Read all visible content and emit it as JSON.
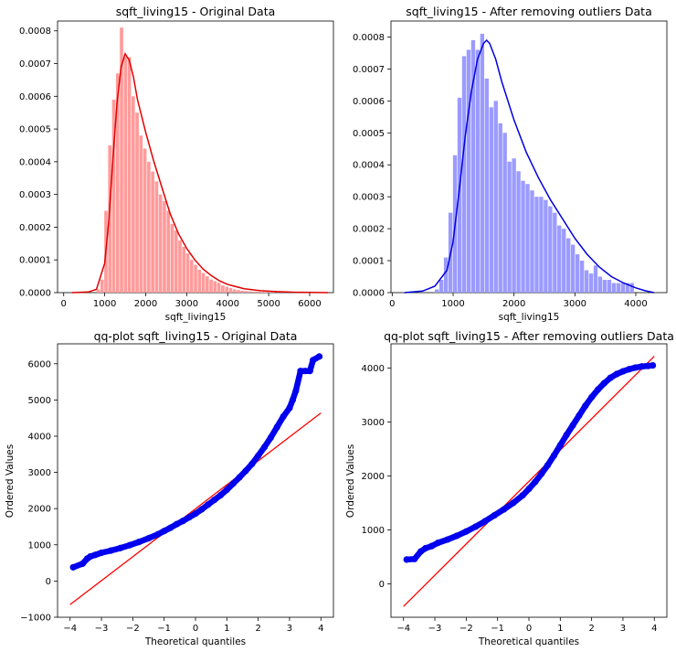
{
  "chart_data": [
    {
      "type": "histogram",
      "title": "sqft_living15 - Original Data",
      "xlabel": "sqft_living15",
      "ylabel": "",
      "xlim": [
        -150,
        6580
      ],
      "ylim": [
        0,
        0.00083
      ],
      "xticks": [
        0,
        1000,
        2000,
        3000,
        4000,
        5000,
        6000
      ],
      "xtick_labels": [
        "0",
        "1000",
        "2000",
        "3000",
        "4000",
        "5000",
        "6000"
      ],
      "yticks": [
        0,
        0.0001,
        0.0002,
        0.0003,
        0.0004,
        0.0005,
        0.0006,
        0.0007,
        0.0008
      ],
      "ytick_labels": [
        "0.0000",
        "0.0001",
        "0.0002",
        "0.0003",
        "0.0004",
        "0.0005",
        "0.0006",
        "0.0007",
        "0.0008"
      ],
      "bar_color": "#ff9b9b",
      "line_color": "#e00000",
      "bins": {
        "start": 800,
        "width": 95,
        "values": [
          1e-05,
          4e-05,
          0.00025,
          0.00045,
          0.00059,
          0.00067,
          0.00081,
          0.00072,
          0.00072,
          0.0006,
          0.00055,
          0.00048,
          0.00044,
          0.0004,
          0.00037,
          0.00034,
          0.0003,
          0.00028,
          0.00025,
          0.00021,
          0.00019,
          0.00016,
          0.00014,
          0.00012,
          0.0001,
          8.5e-05,
          7e-05,
          6e-05,
          5e-05,
          4e-05,
          3.5e-05,
          3e-05,
          2.2e-05,
          1.8e-05,
          1.4e-05,
          1e-05,
          8e-06,
          6e-06,
          5e-06,
          4e-06,
          3e-06,
          3e-06,
          2e-06,
          2e-06,
          1.5e-06,
          1.5e-06,
          1e-06,
          1e-06,
          1e-06,
          1e-06,
          1e-06,
          1e-06,
          1e-06,
          1e-06,
          1e-06,
          1e-06,
          1e-06
        ]
      },
      "kde": {
        "x": [
          200,
          600,
          800,
          1000,
          1100,
          1200,
          1300,
          1400,
          1500,
          1600,
          1700,
          1800,
          2000,
          2200,
          2400,
          2600,
          2800,
          3000,
          3200,
          3400,
          3600,
          3800,
          4000,
          4400,
          4800,
          5200,
          5600,
          6000,
          6450
        ],
        "y": [
          0,
          2e-06,
          1e-05,
          9e-05,
          0.00022,
          0.00041,
          0.00058,
          0.00069,
          0.00073,
          0.00071,
          0.00066,
          0.00059,
          0.00049,
          0.0004,
          0.00032,
          0.00024,
          0.00018,
          0.000135,
          0.0001,
          7.2e-05,
          5.2e-05,
          3.6e-05,
          2.5e-05,
          1.2e-05,
          6e-06,
          3e-06,
          1.5e-06,
          8e-07,
          0
        ]
      }
    },
    {
      "type": "histogram",
      "title": "sqft_living15 - After removing outliers Data",
      "xlabel": "sqft_living15",
      "ylabel": "",
      "xlim": [
        -20,
        4510
      ],
      "ylim": [
        0,
        0.00085
      ],
      "xticks": [
        0,
        1000,
        2000,
        3000,
        4000
      ],
      "xtick_labels": [
        "0",
        "1000",
        "2000",
        "3000",
        "4000"
      ],
      "yticks": [
        0,
        0.0001,
        0.0002,
        0.0003,
        0.0004,
        0.0005,
        0.0006,
        0.0007,
        0.0008
      ],
      "ytick_labels": [
        "0.0000",
        "0.0001",
        "0.0002",
        "0.0003",
        "0.0004",
        "0.0005",
        "0.0006",
        "0.0007",
        "0.0008"
      ],
      "bar_color": "#9b9bff",
      "line_color": "#0000e0",
      "bins": {
        "start": 700,
        "width": 74.5,
        "values": [
          1e-05,
          4e-05,
          0.00011,
          0.00025,
          0.00043,
          0.00061,
          0.00074,
          0.00076,
          0.00079,
          0.00076,
          0.00081,
          0.00067,
          0.00058,
          0.0006,
          0.00053,
          0.0005,
          0.00041,
          0.00042,
          0.00038,
          0.00035,
          0.00034,
          0.00032,
          0.0003,
          0.0003,
          0.00029,
          0.00027,
          0.00025,
          0.00021,
          0.0002,
          0.00017,
          0.00015,
          0.00012,
          0.0001,
          7e-05,
          6e-05,
          8.5e-05,
          5e-05,
          4e-05,
          4e-05,
          3e-05,
          3e-05,
          3e-05,
          3e-05,
          3e-05
        ]
      },
      "kde": {
        "x": [
          200,
          500,
          700,
          900,
          1000,
          1100,
          1200,
          1300,
          1400,
          1500,
          1550,
          1600,
          1700,
          1800,
          2000,
          2200,
          2400,
          2600,
          2800,
          3000,
          3200,
          3400,
          3600,
          3800,
          4000,
          4150,
          4300
        ],
        "y": [
          0,
          5e-06,
          2e-05,
          7e-05,
          0.00016,
          0.00032,
          0.00049,
          0.00063,
          0.00073,
          0.00078,
          0.00079,
          0.00078,
          0.00073,
          0.00066,
          0.00054,
          0.00044,
          0.00036,
          0.00029,
          0.00023,
          0.00017,
          0.00012,
          8e-05,
          5e-05,
          3e-05,
          1.5e-05,
          6e-06,
          0
        ]
      }
    },
    {
      "type": "scatter",
      "title": "qq-plot sqft_living15 - Original Data",
      "xlabel": "Theoretical quantiles",
      "ylabel": "Ordered Values",
      "xlim": [
        -4.4,
        4.4
      ],
      "ylim": [
        -1000,
        6550
      ],
      "xticks": [
        -4,
        -3,
        -2,
        -1,
        0,
        1,
        2,
        3,
        4
      ],
      "xtick_labels": [
        "−4",
        "−3",
        "−2",
        "−1",
        "0",
        "1",
        "2",
        "3",
        "4"
      ],
      "yticks": [
        -1000,
        0,
        1000,
        2000,
        3000,
        4000,
        5000,
        6000
      ],
      "ytick_labels": [
        "−1000",
        "0",
        "1000",
        "2000",
        "3000",
        "4000",
        "5000",
        "6000"
      ],
      "point_color": "#0000ee",
      "line_color": "#ff0000",
      "points": {
        "x": [
          -3.9,
          -3.6,
          -3.45,
          -3.35,
          -3.2,
          -3.0,
          -2.7,
          -2.4,
          -2.1,
          -1.8,
          -1.5,
          -1.2,
          -1.0,
          -0.8,
          -0.6,
          -0.4,
          -0.2,
          0,
          0.2,
          0.4,
          0.6,
          0.8,
          1.0,
          1.2,
          1.4,
          1.6,
          1.8,
          2.0,
          2.2,
          2.4,
          2.6,
          2.8,
          3.0,
          3.1,
          3.2,
          3.35,
          3.5,
          3.65,
          3.75,
          3.95
        ],
        "y": [
          380,
          480,
          620,
          680,
          720,
          780,
          840,
          910,
          990,
          1080,
          1180,
          1290,
          1380,
          1470,
          1570,
          1660,
          1760,
          1860,
          1980,
          2110,
          2240,
          2370,
          2520,
          2690,
          2860,
          3040,
          3230,
          3460,
          3700,
          3960,
          4250,
          4540,
          4780,
          5000,
          5250,
          5800,
          5800,
          5800,
          6100,
          6200
        ]
      },
      "ref_line": {
        "x": [
          -4,
          4
        ],
        "y": [
          -650,
          4640
        ]
      }
    },
    {
      "type": "scatter",
      "title": "qq-plot sqft_living15 - After removing outliers Data",
      "xlabel": "Theoretical quantiles",
      "ylabel": "Ordered Values",
      "xlim": [
        -4.4,
        4.4
      ],
      "ylim": [
        -620,
        4450
      ],
      "xticks": [
        -4,
        -3,
        -2,
        -1,
        0,
        1,
        2,
        3,
        4
      ],
      "xtick_labels": [
        "−4",
        "−3",
        "−2",
        "−1",
        "0",
        "1",
        "2",
        "3",
        "4"
      ],
      "yticks": [
        0,
        1000,
        2000,
        3000,
        4000
      ],
      "ytick_labels": [
        "0",
        "1000",
        "2000",
        "3000",
        "4000"
      ],
      "point_color": "#0000ee",
      "line_color": "#ff0000",
      "points": {
        "x": [
          -3.9,
          -3.65,
          -3.45,
          -3.3,
          -3.1,
          -2.9,
          -2.6,
          -2.3,
          -2.0,
          -1.7,
          -1.4,
          -1.1,
          -0.8,
          -0.5,
          -0.2,
          0,
          0.2,
          0.4,
          0.6,
          0.8,
          1.0,
          1.2,
          1.4,
          1.6,
          1.8,
          2.0,
          2.2,
          2.4,
          2.6,
          2.8,
          3.0,
          3.2,
          3.4,
          3.6,
          3.8,
          3.95
        ],
        "y": [
          450,
          460,
          600,
          660,
          700,
          760,
          820,
          890,
          970,
          1060,
          1160,
          1270,
          1380,
          1500,
          1640,
          1760,
          1890,
          2040,
          2200,
          2380,
          2570,
          2760,
          2940,
          3120,
          3300,
          3460,
          3600,
          3720,
          3820,
          3890,
          3940,
          3980,
          4010,
          4030,
          4040,
          4050
        ]
      },
      "ref_line": {
        "x": [
          -4,
          4
        ],
        "y": [
          -420,
          4220
        ]
      }
    }
  ]
}
